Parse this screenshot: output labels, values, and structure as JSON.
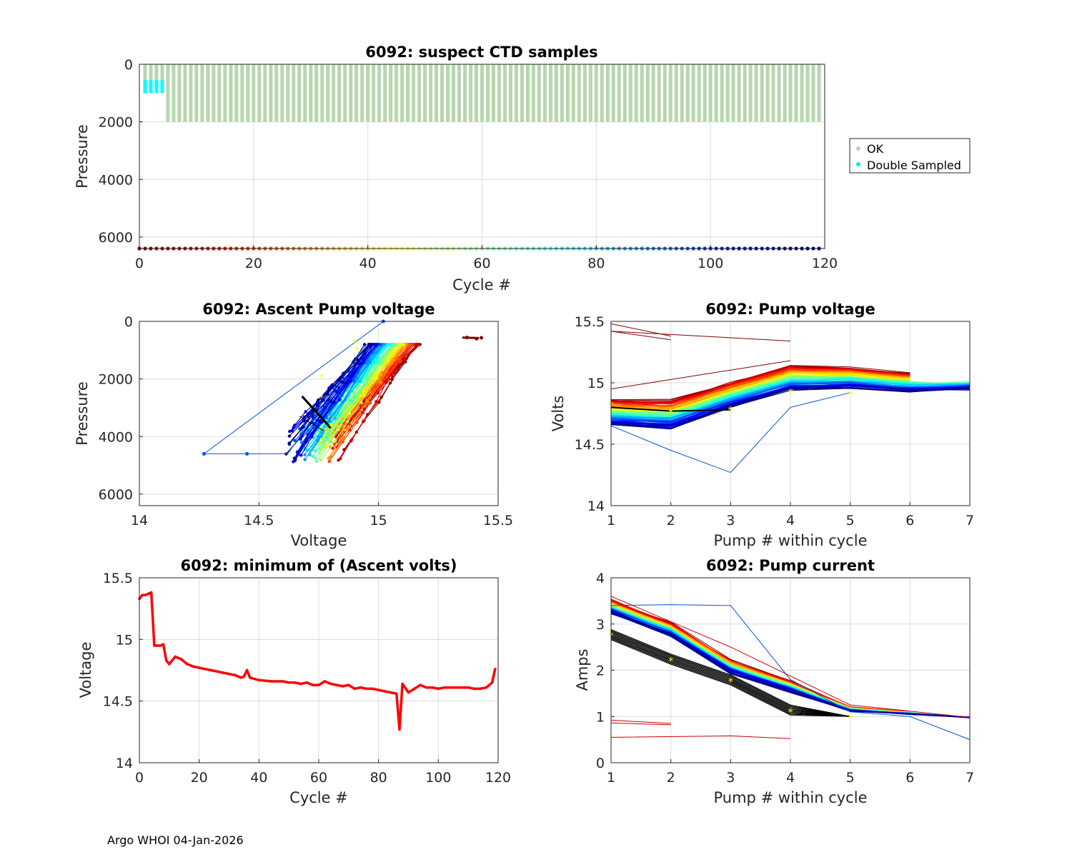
{
  "footer": "Argo WHOI 04-Jan-2026",
  "colors": {
    "ok": "#b7d7ae",
    "double": "#00ffff",
    "min_line": "#ff0000",
    "marker": "#ffff00"
  },
  "chart_data": [
    {
      "id": "ctd",
      "type": "scatter",
      "title": "6092: suspect CTD samples",
      "xlabel": "Cycle #",
      "ylabel": "Pressure",
      "xlim": [
        0,
        120
      ],
      "ylim": [
        6400,
        0
      ],
      "xticks": [
        "0",
        "20",
        "40",
        "60",
        "80",
        "100",
        "120"
      ],
      "yticks": [
        "0",
        "2000",
        "4000",
        "6000"
      ],
      "legend": {
        "position": "right",
        "entries": [
          "OK",
          "Double Sampled"
        ]
      },
      "series": [
        {
          "name": "OK",
          "cycles": [
            1,
            119
          ],
          "pressure_range": [
            0,
            2000
          ],
          "note": "cycles 1-4 to ~1000 dbar"
        },
        {
          "name": "Double Sampled",
          "cycles": [
            1,
            2,
            3,
            4
          ],
          "pressure_range": [
            550,
            1000
          ]
        }
      ],
      "cycle_strip_pressure": 6400
    },
    {
      "id": "ascent",
      "type": "line",
      "title": "6092: Ascent Pump voltage",
      "xlabel": "Voltage",
      "ylabel": "Pressure",
      "xlim": [
        14,
        15.5
      ],
      "ylim": [
        6400,
        0
      ],
      "xticks": [
        "14",
        "14.5",
        "15",
        "15.5"
      ],
      "yticks": [
        "0",
        "2000",
        "4000",
        "6000"
      ]
    },
    {
      "id": "pumpv",
      "type": "line",
      "title": "6092: Pump voltage",
      "xlabel": "Pump # within cycle",
      "ylabel": "Volts",
      "xlim": [
        1,
        7
      ],
      "ylim": [
        14,
        15.5
      ],
      "xticks": [
        "1",
        "2",
        "3",
        "4",
        "5",
        "6",
        "7"
      ],
      "yticks": [
        "14",
        "14.5",
        "15",
        "15.5"
      ]
    },
    {
      "id": "minv",
      "type": "line",
      "title": "6092: minimum of (Ascent volts)",
      "xlabel": "Cycle #",
      "ylabel": "Voltage",
      "xlim": [
        0,
        120
      ],
      "ylim": [
        14,
        15.5
      ],
      "xticks": [
        "0",
        "20",
        "40",
        "60",
        "80",
        "100",
        "120"
      ],
      "yticks": [
        "14",
        "14.5",
        "15",
        "15.5"
      ],
      "series": [
        {
          "name": "min ascent volts",
          "x": [
            0,
            1,
            2,
            3,
            4,
            5,
            6,
            7,
            8,
            9,
            10,
            12,
            14,
            16,
            18,
            20,
            22,
            24,
            26,
            28,
            30,
            32,
            34,
            35,
            36,
            37,
            40,
            44,
            48,
            50,
            52,
            54,
            56,
            58,
            60,
            62,
            64,
            66,
            68,
            70,
            72,
            74,
            76,
            78,
            80,
            82,
            84,
            86,
            87,
            88,
            90,
            92,
            94,
            96,
            98,
            100,
            102,
            104,
            106,
            108,
            110,
            112,
            114,
            116,
            118,
            119
          ],
          "y": [
            15.33,
            15.36,
            15.36,
            15.37,
            15.38,
            14.95,
            14.95,
            14.95,
            14.96,
            14.83,
            14.8,
            14.86,
            14.84,
            14.8,
            14.78,
            14.77,
            14.76,
            14.75,
            14.74,
            14.73,
            14.72,
            14.71,
            14.69,
            14.7,
            14.75,
            14.69,
            14.67,
            14.66,
            14.66,
            14.65,
            14.65,
            14.64,
            14.65,
            14.63,
            14.63,
            14.66,
            14.64,
            14.63,
            14.62,
            14.63,
            14.6,
            14.61,
            14.6,
            14.6,
            14.59,
            14.58,
            14.57,
            14.56,
            14.27,
            14.64,
            14.57,
            14.6,
            14.63,
            14.61,
            14.61,
            14.6,
            14.61,
            14.61,
            14.61,
            14.61,
            14.61,
            14.6,
            14.6,
            14.61,
            14.65,
            14.76
          ]
        }
      ]
    },
    {
      "id": "pumpc",
      "type": "line",
      "title": "6092: Pump current",
      "xlabel": "Pump # within cycle",
      "ylabel": "Amps",
      "xlim": [
        1,
        7
      ],
      "ylim": [
        0,
        4
      ],
      "xticks": [
        "1",
        "2",
        "3",
        "4",
        "5",
        "6",
        "7"
      ],
      "yticks": [
        "0",
        "1",
        "2",
        "3",
        "4"
      ]
    }
  ]
}
